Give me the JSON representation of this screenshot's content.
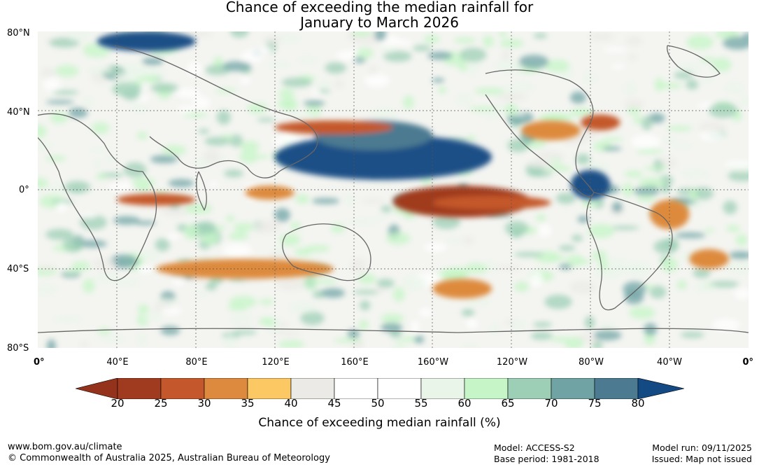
{
  "title": {
    "line1": "Chance of exceeding the median rainfall for",
    "line2": "January to March 2026"
  },
  "map": {
    "lat_labels": [
      "80°N",
      "40°N",
      "0°",
      "40°S",
      "80°S"
    ],
    "lon_labels": [
      "0°",
      "40°E",
      "80°E",
      "120°E",
      "160°E",
      "160°W",
      "120°W",
      "80°W",
      "40°W",
      "0°"
    ],
    "features": [
      {
        "name": "equatorial-pacific-dry",
        "lon": [
          180,
          250
        ],
        "lat": [
          -14,
          2
        ],
        "pct": 20
      },
      {
        "name": "equatorial-pacific-dry-east",
        "lon": [
          200,
          260
        ],
        "lat": [
          -10,
          -3
        ],
        "pct": 25
      },
      {
        "name": "north-pacific-wet",
        "lon": [
          120,
          230
        ],
        "lat": [
          5,
          28
        ],
        "pct": 80
      },
      {
        "name": "north-pacific-wet-edge",
        "lon": [
          140,
          200
        ],
        "lat": [
          20,
          35
        ],
        "pct": 75
      },
      {
        "name": "north-pacific-dry",
        "lon": [
          120,
          180
        ],
        "lat": [
          28,
          35
        ],
        "pct": 25
      },
      {
        "name": "maritime-continent-dry",
        "lon": [
          105,
          130
        ],
        "lat": [
          -5,
          2
        ],
        "pct": 30
      },
      {
        "name": "north-america-dry",
        "lon": [
          245,
          275
        ],
        "lat": [
          25,
          35
        ],
        "pct": 30
      },
      {
        "name": "east-us-dry",
        "lon": [
          275,
          295
        ],
        "lat": [
          30,
          38
        ],
        "pct": 25
      },
      {
        "name": "south-america-wet",
        "lon": [
          270,
          290
        ],
        "lat": [
          -5,
          10
        ],
        "pct": 80
      },
      {
        "name": "brazil-dry",
        "lon": [
          310,
          330
        ],
        "lat": [
          -20,
          -5
        ],
        "pct": 30
      },
      {
        "name": "east-africa-dry",
        "lon": [
          40,
          80
        ],
        "lat": [
          -8,
          -2
        ],
        "pct": 25
      },
      {
        "name": "south-indian-ocean-dry",
        "lon": [
          60,
          150
        ],
        "lat": [
          -45,
          -35
        ],
        "pct": 30
      },
      {
        "name": "south-pacific-dry",
        "lon": [
          200,
          230
        ],
        "lat": [
          -55,
          -45
        ],
        "pct": 30
      },
      {
        "name": "arctic-wet",
        "lon": [
          30,
          80
        ],
        "lat": [
          70,
          80
        ],
        "pct": 80
      },
      {
        "name": "south-atlantic-dry",
        "lon": [
          330,
          350
        ],
        "lat": [
          -40,
          -30
        ],
        "pct": 30
      }
    ]
  },
  "colorbar": {
    "ticks": [
      "20",
      "25",
      "30",
      "35",
      "40",
      "45",
      "50",
      "55",
      "60",
      "65",
      "70",
      "75",
      "80"
    ],
    "colors": [
      "#a03b1f",
      "#c4582c",
      "#dd8a3e",
      "#fcc864",
      "#ebeae6",
      "#ffffff",
      "#ffffff",
      "#eaf5ea",
      "#c6f5c7",
      "#9dcfb6",
      "#6fa3a4",
      "#4b7a91",
      "#1e4f86"
    ],
    "under_color": "#94321c",
    "over_color": "#134a84",
    "label": "Chance of exceeding median rainfall (%)"
  },
  "footer": {
    "url": "www.bom.gov.au/climate",
    "copyright": "© Commonwealth of Australia 2025, Australian Bureau of Meteorology",
    "model": "Model: ACCESS-S2",
    "base_period": "Base period: 1981-2018",
    "model_run": "Model run: 09/11/2025",
    "issued": "Issued: Map not issued"
  }
}
